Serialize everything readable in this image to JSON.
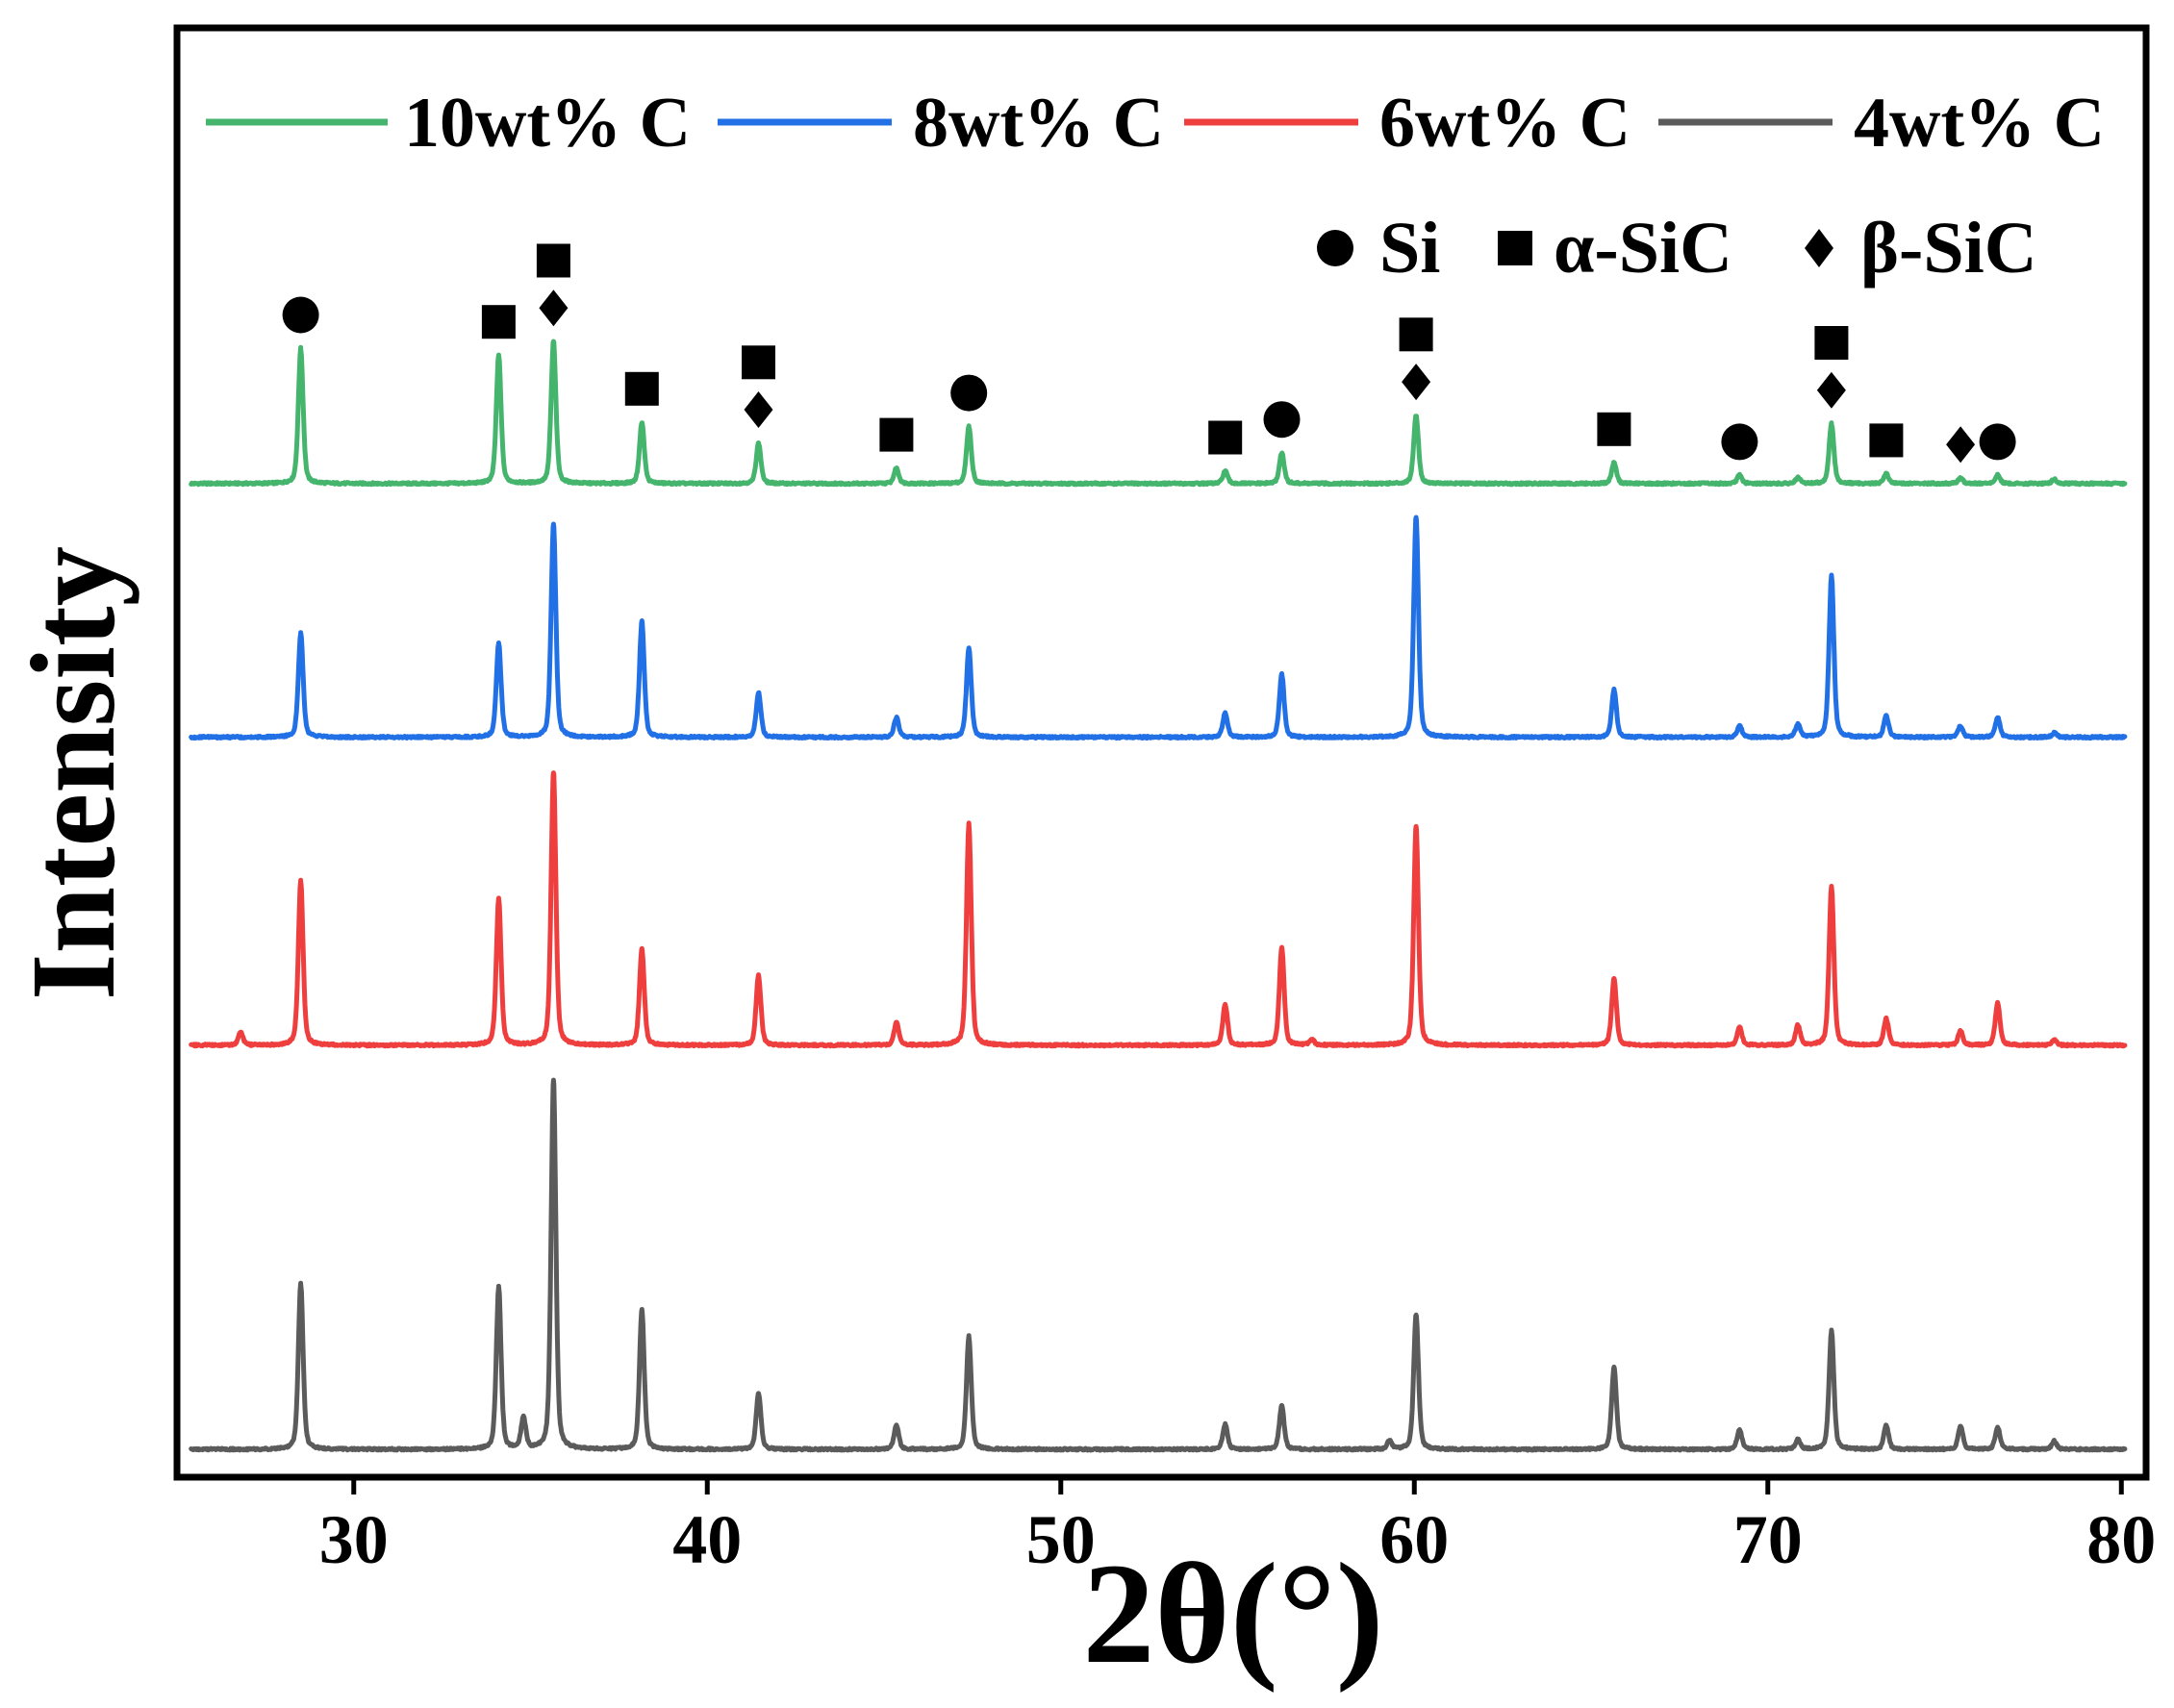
{
  "chart_data": {
    "type": "line",
    "xlabel": "2θ(°)",
    "ylabel": "Intensity",
    "xlim": [
      25,
      80.7
    ],
    "ylim": [
      -20,
      1020
    ],
    "x_ticks": [
      30,
      40,
      50,
      60,
      70,
      80
    ],
    "x_range": [
      25.4,
      80.1
    ],
    "grid": false,
    "legend_position": "top",
    "series": [
      {
        "name": "10wt% C",
        "color": "#45b46c",
        "baseline": 693,
        "peaks": [
          [
            28.5,
            97
          ],
          [
            34.1,
            92
          ],
          [
            35.65,
            102
          ],
          [
            38.15,
            44
          ],
          [
            41.45,
            29
          ],
          [
            45.35,
            11
          ],
          [
            47.4,
            41
          ],
          [
            54.65,
            9
          ],
          [
            56.25,
            22
          ],
          [
            60.05,
            49
          ],
          [
            65.65,
            15
          ],
          [
            69.2,
            6
          ],
          [
            70.85,
            4
          ],
          [
            71.8,
            43
          ],
          [
            73.35,
            7
          ],
          [
            75.45,
            4
          ],
          [
            76.5,
            6
          ],
          [
            78.1,
            3
          ]
        ]
      },
      {
        "name": "8wt% C",
        "color": "#2170e6",
        "baseline": 511,
        "peaks": [
          [
            28.5,
            75
          ],
          [
            34.1,
            67
          ],
          [
            35.65,
            153
          ],
          [
            38.15,
            83
          ],
          [
            41.45,
            32
          ],
          [
            45.35,
            14
          ],
          [
            47.4,
            64
          ],
          [
            54.65,
            17
          ],
          [
            56.25,
            45
          ],
          [
            60.05,
            158
          ],
          [
            65.65,
            34
          ],
          [
            69.2,
            8
          ],
          [
            70.85,
            9
          ],
          [
            71.8,
            116
          ],
          [
            73.35,
            15
          ],
          [
            75.45,
            8
          ],
          [
            76.5,
            14
          ],
          [
            78.1,
            3
          ]
        ]
      },
      {
        "name": "6wt% C",
        "color": "#ef3e3e",
        "baseline": 290,
        "peaks": [
          [
            26.8,
            9
          ],
          [
            28.5,
            118
          ],
          [
            34.1,
            105
          ],
          [
            35.65,
            196
          ],
          [
            38.15,
            69
          ],
          [
            41.45,
            50
          ],
          [
            45.35,
            16
          ],
          [
            47.4,
            159
          ],
          [
            54.65,
            29
          ],
          [
            56.25,
            70
          ],
          [
            57.1,
            4
          ],
          [
            60.05,
            157
          ],
          [
            65.65,
            48
          ],
          [
            69.2,
            13
          ],
          [
            70.85,
            14
          ],
          [
            71.8,
            114
          ],
          [
            73.35,
            19
          ],
          [
            75.45,
            10
          ],
          [
            76.5,
            30
          ],
          [
            78.1,
            4
          ]
        ]
      },
      {
        "name": "4wt% C",
        "color": "#5b5b5b",
        "baseline": 0,
        "peaks": [
          [
            28.5,
            119
          ],
          [
            34.1,
            116
          ],
          [
            34.8,
            22
          ],
          [
            35.65,
            265
          ],
          [
            38.15,
            100
          ],
          [
            41.45,
            40
          ],
          [
            45.35,
            17
          ],
          [
            47.4,
            81
          ],
          [
            54.65,
            18
          ],
          [
            56.25,
            31
          ],
          [
            59.3,
            6
          ],
          [
            60.05,
            97
          ],
          [
            65.65,
            59
          ],
          [
            69.2,
            14
          ],
          [
            70.85,
            7
          ],
          [
            71.8,
            85
          ],
          [
            73.35,
            17
          ],
          [
            75.45,
            17
          ],
          [
            76.5,
            16
          ],
          [
            78.1,
            6
          ]
        ]
      }
    ],
    "phase_legend": [
      {
        "symbol": "circle",
        "label": "Si"
      },
      {
        "symbol": "square",
        "label": "α-SiC"
      },
      {
        "symbol": "diamond",
        "label": "β-SiC"
      }
    ],
    "phase_markers": [
      {
        "two_theta": 28.5,
        "symbols": [
          "circle"
        ]
      },
      {
        "two_theta": 34.1,
        "symbols": [
          "square"
        ]
      },
      {
        "two_theta": 35.65,
        "symbols": [
          "diamond",
          "square"
        ]
      },
      {
        "two_theta": 38.15,
        "symbols": [
          "square"
        ]
      },
      {
        "two_theta": 41.45,
        "symbols": [
          "diamond",
          "square"
        ]
      },
      {
        "two_theta": 45.35,
        "symbols": [
          "square"
        ]
      },
      {
        "two_theta": 47.4,
        "symbols": [
          "circle"
        ]
      },
      {
        "two_theta": 54.65,
        "symbols": [
          "square"
        ]
      },
      {
        "two_theta": 56.25,
        "symbols": [
          "circle"
        ]
      },
      {
        "two_theta": 60.05,
        "symbols": [
          "diamond",
          "square"
        ]
      },
      {
        "two_theta": 65.65,
        "symbols": [
          "square"
        ]
      },
      {
        "two_theta": 69.2,
        "symbols": [
          "circle"
        ]
      },
      {
        "two_theta": 71.8,
        "symbols": [
          "diamond",
          "square"
        ]
      },
      {
        "two_theta": 73.35,
        "symbols": [
          "square"
        ]
      },
      {
        "two_theta": 75.45,
        "symbols": [
          "diamond"
        ]
      },
      {
        "two_theta": 76.5,
        "symbols": [
          "circle"
        ]
      }
    ]
  }
}
